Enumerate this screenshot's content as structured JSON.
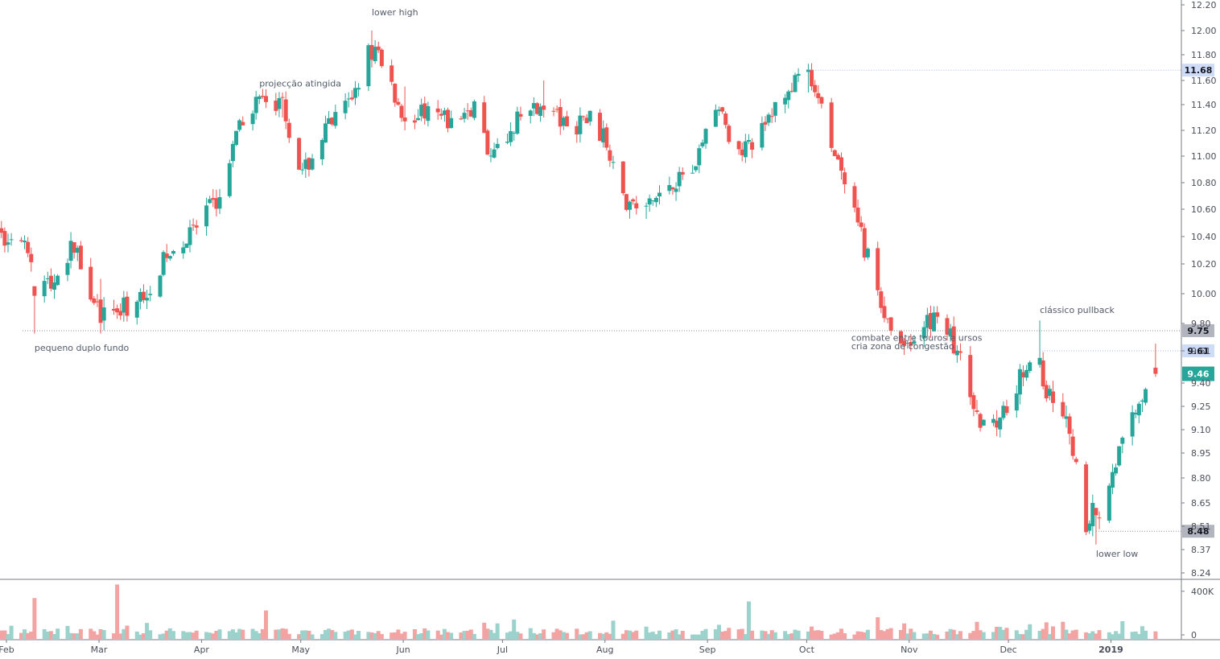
{
  "chart_data": {
    "type": "candlestick",
    "colors": {
      "up": "#26a69a",
      "down": "#ef5350",
      "up_volume": "#9bd3cc",
      "down_volume": "#f3a3a1"
    },
    "price_axis": {
      "ticks": [
        "12.20",
        "12.00",
        "11.80",
        "11.60",
        "11.40",
        "11.20",
        "11.00",
        "10.80",
        "10.60",
        "10.40",
        "10.20",
        "10.00",
        "9.80",
        "9.61",
        "9.40",
        "9.25",
        "9.10",
        "8.95",
        "8.80",
        "8.65",
        "8.51",
        "8.37",
        "8.24"
      ],
      "range": [
        8.2,
        12.2
      ]
    },
    "volume_axis": {
      "ticks": [
        "400K",
        "0"
      ]
    },
    "time_axis": [
      "Feb",
      "Mar",
      "Apr",
      "May",
      "Jun",
      "Jul",
      "Aug",
      "Sep",
      "Oct",
      "Nov",
      "Dec",
      "2019"
    ],
    "levels": [
      {
        "value": 11.68,
        "label": "11.68",
        "style": "light-blue"
      },
      {
        "value": 9.75,
        "label": "9.75",
        "style": "grey"
      },
      {
        "value": 9.61,
        "label": "9.61",
        "style": "light-blue"
      },
      {
        "value": 8.48,
        "label": "8.48",
        "style": "grey"
      }
    ],
    "last_price": {
      "value": 9.46,
      "label": "9.46"
    },
    "annotations": [
      {
        "text": "pequeno duplo fundo",
        "date": "2018-02-09",
        "price": 9.61
      },
      {
        "text": "projecção atingida",
        "date": "2018-04-18",
        "price": 11.55
      },
      {
        "text": "lower high",
        "date": "2018-05-22",
        "price": 12.12
      },
      {
        "text": "combate entre touros e ursos",
        "date": "2018-10-14",
        "price": 9.68
      },
      {
        "text": "cria zona de congestão",
        "date": "2018-10-14",
        "price": 9.62
      },
      {
        "text": "clássico pullback",
        "date": "2018-12-10",
        "price": 9.87
      },
      {
        "text": "lower low",
        "date": "2018-12-27",
        "price": 8.33
      }
    ],
    "trend_path": [
      [
        "2018-01-29",
        10.4
      ],
      [
        "2018-02-06",
        10.3
      ],
      [
        "2018-02-14",
        10.05
      ],
      [
        "2018-02-21",
        10.35
      ],
      [
        "2018-03-01",
        9.85
      ],
      [
        "2018-03-05",
        9.85
      ],
      [
        "2018-03-13",
        9.97
      ],
      [
        "2018-03-21",
        10.25
      ],
      [
        "2018-03-28",
        10.4
      ],
      [
        "2018-04-06",
        10.7
      ],
      [
        "2018-04-13",
        11.3
      ],
      [
        "2018-04-18",
        11.45
      ],
      [
        "2018-04-25",
        11.4
      ],
      [
        "2018-05-01",
        10.85
      ],
      [
        "2018-05-08",
        11.2
      ],
      [
        "2018-05-15",
        11.4
      ],
      [
        "2018-05-22",
        11.9
      ],
      [
        "2018-05-25",
        11.7
      ],
      [
        "2018-06-01",
        11.3
      ],
      [
        "2018-06-08",
        11.35
      ],
      [
        "2018-06-15",
        11.25
      ],
      [
        "2018-06-22",
        11.4
      ],
      [
        "2018-06-27",
        11.0
      ],
      [
        "2018-07-06",
        11.3
      ],
      [
        "2018-07-13",
        11.45
      ],
      [
        "2018-07-20",
        11.2
      ],
      [
        "2018-07-27",
        11.3
      ],
      [
        "2018-08-01",
        11.1
      ],
      [
        "2018-08-06",
        10.65
      ],
      [
        "2018-08-13",
        10.6
      ],
      [
        "2018-08-20",
        10.8
      ],
      [
        "2018-08-27",
        10.9
      ],
      [
        "2018-09-03",
        11.4
      ],
      [
        "2018-09-10",
        11.0
      ],
      [
        "2018-09-17",
        11.2
      ],
      [
        "2018-09-24",
        11.5
      ],
      [
        "2018-10-01",
        11.65
      ],
      [
        "2018-10-05",
        11.35
      ],
      [
        "2018-10-12",
        10.75
      ],
      [
        "2018-10-19",
        10.25
      ],
      [
        "2018-10-26",
        9.75
      ],
      [
        "2018-11-02",
        9.65
      ],
      [
        "2018-11-09",
        9.9
      ],
      [
        "2018-11-16",
        9.55
      ],
      [
        "2018-11-21",
        9.15
      ],
      [
        "2018-11-28",
        9.2
      ],
      [
        "2018-12-04",
        9.45
      ],
      [
        "2018-12-07",
        9.55
      ],
      [
        "2018-12-12",
        9.25
      ],
      [
        "2018-12-14",
        9.35
      ],
      [
        "2018-12-19",
        9.05
      ],
      [
        "2018-12-24",
        8.55
      ],
      [
        "2018-12-27",
        8.42
      ],
      [
        "2018-12-31",
        8.8
      ],
      [
        "2019-01-03",
        8.95
      ],
      [
        "2019-01-09",
        9.3
      ],
      [
        "2019-01-14",
        9.46
      ]
    ],
    "extremes": {
      "2018-05-22": [
        12.0,
        11.7
      ],
      "2018-10-01": [
        11.73,
        11.5
      ],
      "2018-03-01": [
        10.1,
        9.73
      ],
      "2018-02-09": [
        10.05,
        9.73
      ],
      "2018-12-27": [
        8.62,
        8.4
      ],
      "2018-12-26": [
        8.7,
        8.45
      ],
      "2018-12-10": [
        9.82,
        9.5
      ],
      "2019-01-14": [
        9.66,
        9.44
      ],
      "2018-08-13": [
        10.65,
        10.53
      ],
      "2018-06-01": [
        11.55,
        11.2
      ],
      "2018-04-25": [
        11.5,
        11.3
      ],
      "2018-07-13": [
        11.6,
        11.3
      ]
    },
    "volume_spikes": {
      "2018-02-09": 340000,
      "2018-03-06": 460000,
      "2018-04-20": 230000,
      "2018-09-13": 310000,
      "2018-08-03": 140000,
      "2018-10-22": 170000,
      "2018-07-04": 150000,
      "2018-12-17": 130000
    }
  }
}
